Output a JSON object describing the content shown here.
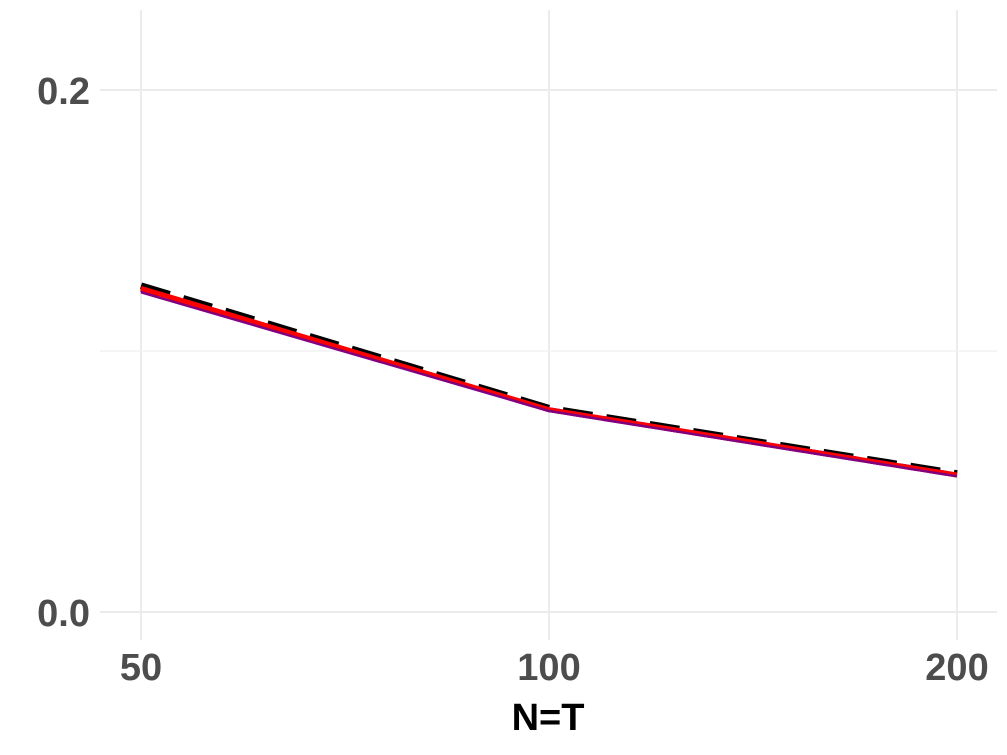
{
  "chart_data": {
    "type": "line",
    "title": "",
    "xlabel": "N=T",
    "ylabel": "",
    "x": [
      50,
      100,
      200
    ],
    "x_tick_labels": [
      "50",
      "100",
      "200"
    ],
    "y_ticks": [
      0.0,
      0.2
    ],
    "y_tick_labels": [
      "0.0",
      "0.2"
    ],
    "xlim": [
      50,
      200
    ],
    "ylim": [
      -0.006,
      0.231
    ],
    "grid": true,
    "legend": "none",
    "series": [
      {
        "color": "#000000",
        "dash": "long-dash",
        "values": [
          0.125,
          0.078,
          0.053
        ]
      },
      {
        "color": "#0000ff",
        "dash": "dash",
        "values": [
          0.1235,
          0.0775,
          0.0525
        ]
      },
      {
        "color": "#ff0000",
        "dash": "solid",
        "values": [
          0.124,
          0.0775,
          0.0525
        ]
      },
      {
        "color": "#800080",
        "dash": "solid",
        "values": [
          0.1225,
          0.077,
          0.052
        ]
      }
    ]
  }
}
